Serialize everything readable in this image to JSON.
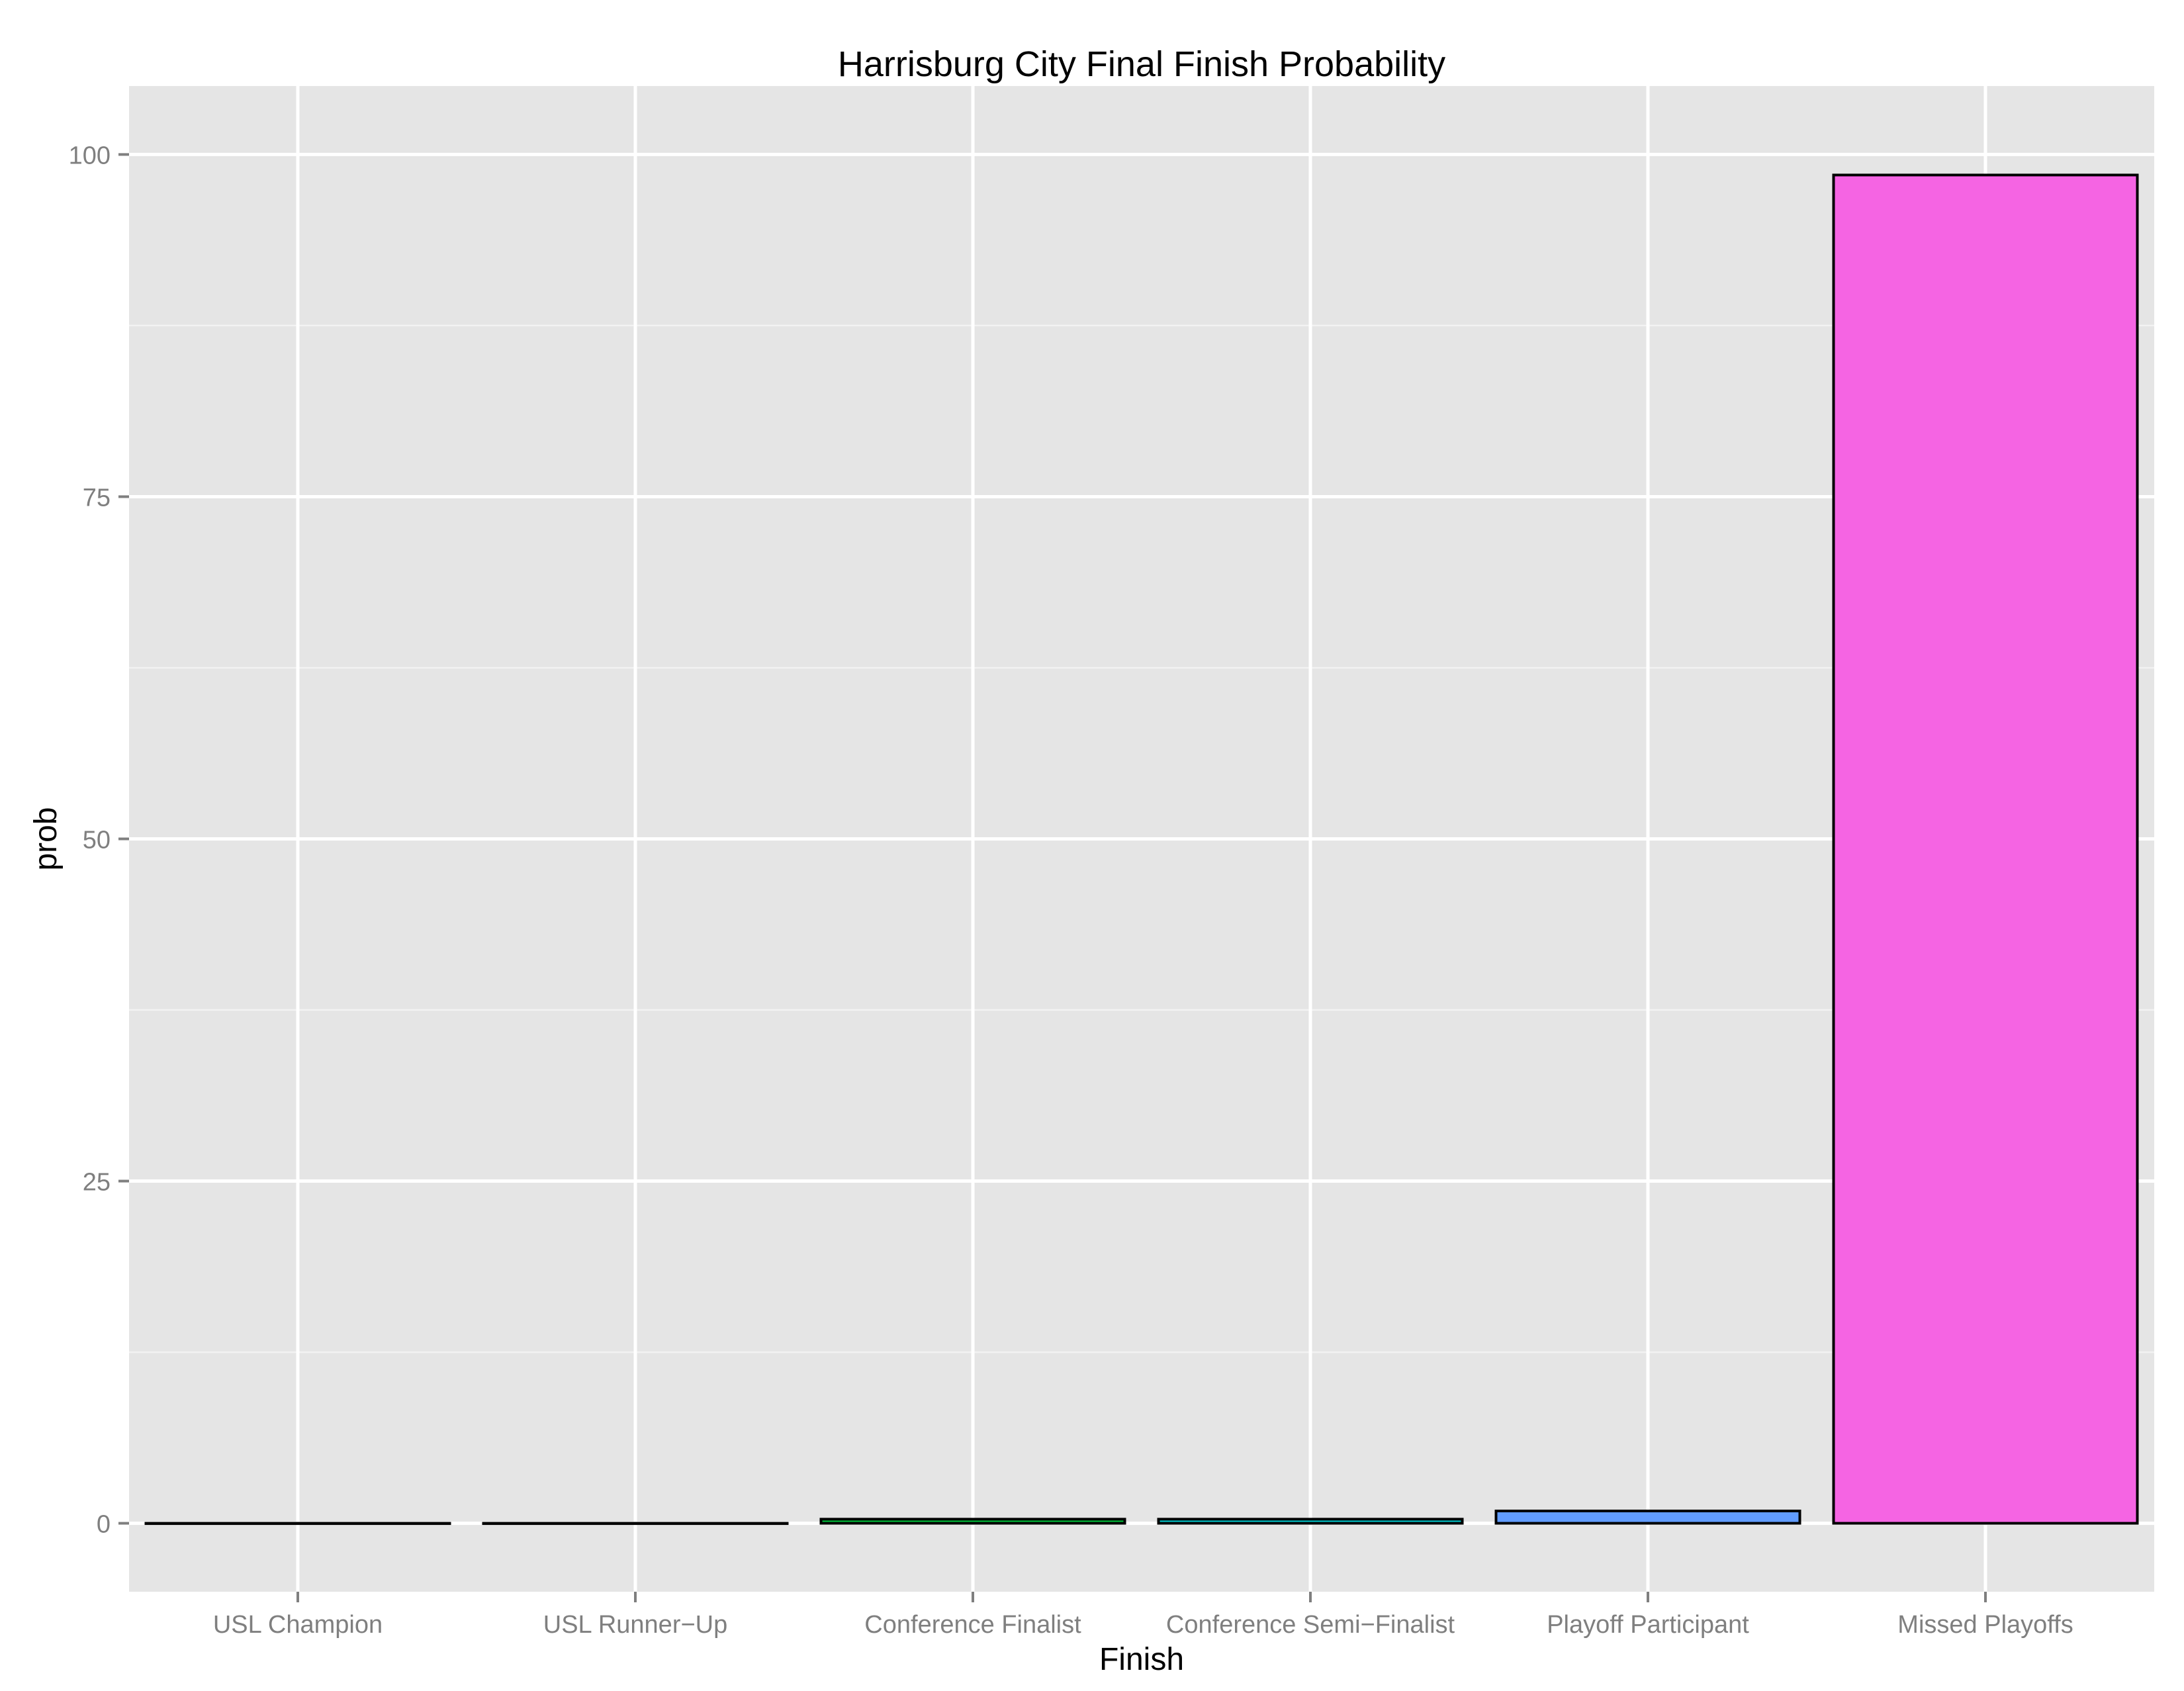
{
  "colors": {
    "panel_background": "#e5e5e5",
    "grid_major": "#ffffff",
    "grid_minor": "#f2f2f2",
    "tick": "#7f7f7f",
    "bar_outline": "#000000"
  },
  "chart_data": {
    "type": "bar",
    "title": "Harrisburg City Final Finish Probability",
    "xlabel": "Finish",
    "ylabel": "prob",
    "categories": [
      "USL Champion",
      "USL Runner−Up",
      "Conference Finalist",
      "Conference Semi−Finalist",
      "Playoff Participant",
      "Missed Playoffs"
    ],
    "values": [
      0.0,
      0.0,
      0.3,
      0.3,
      0.9,
      98.5
    ],
    "bar_colors": [
      "#f8766d",
      "#b79f00",
      "#00ba38",
      "#00bfc4",
      "#619cff",
      "#f564e3"
    ],
    "ylim": [
      -5,
      105
    ],
    "yticks": [
      0,
      25,
      50,
      75,
      100
    ],
    "ytick_labels": [
      "0",
      "25",
      "50",
      "75",
      "100"
    ],
    "grid": true,
    "legend": "none"
  }
}
